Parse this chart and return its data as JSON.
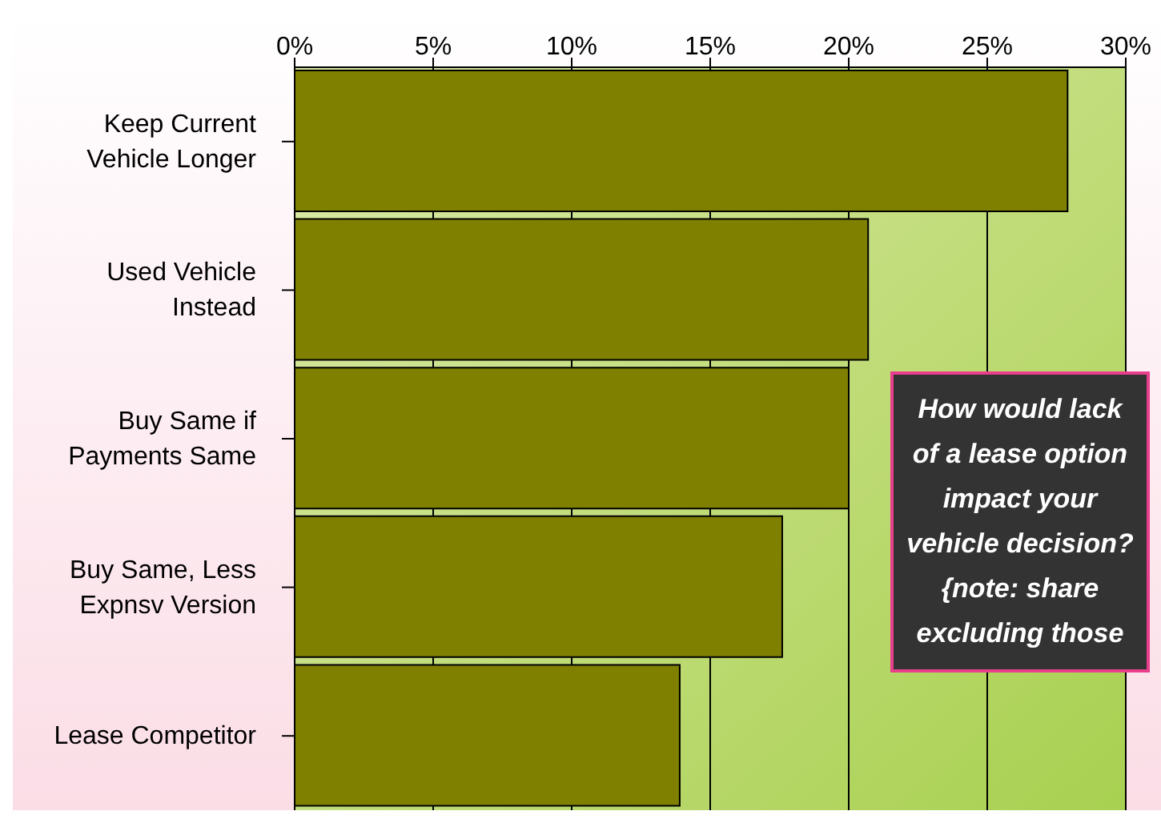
{
  "chart_data": {
    "type": "bar",
    "orientation": "horizontal",
    "categories": [
      "Keep Current Vehicle Longer",
      "Used Vehicle Instead",
      "Buy Same if Payments Same",
      "Buy Same, Less Expnsv Version",
      "Lease Competitor"
    ],
    "values": [
      27.9,
      20.7,
      20.0,
      17.6,
      13.9
    ],
    "color": "#7f7f00",
    "xlim": [
      0,
      30
    ],
    "xticks": [
      {
        "value": 0,
        "label": "0%"
      },
      {
        "value": 5,
        "label": "5%"
      },
      {
        "value": 10,
        "label": "10%"
      },
      {
        "value": 15,
        "label": "15%"
      },
      {
        "value": 20,
        "label": "20%"
      },
      {
        "value": 25,
        "label": "25%"
      },
      {
        "value": 30,
        "label": "30%"
      }
    ],
    "grid": "x",
    "annotations": [
      "How would lack of a lease option impact your vehicle decision? {note: share excluding those"
    ]
  }
}
